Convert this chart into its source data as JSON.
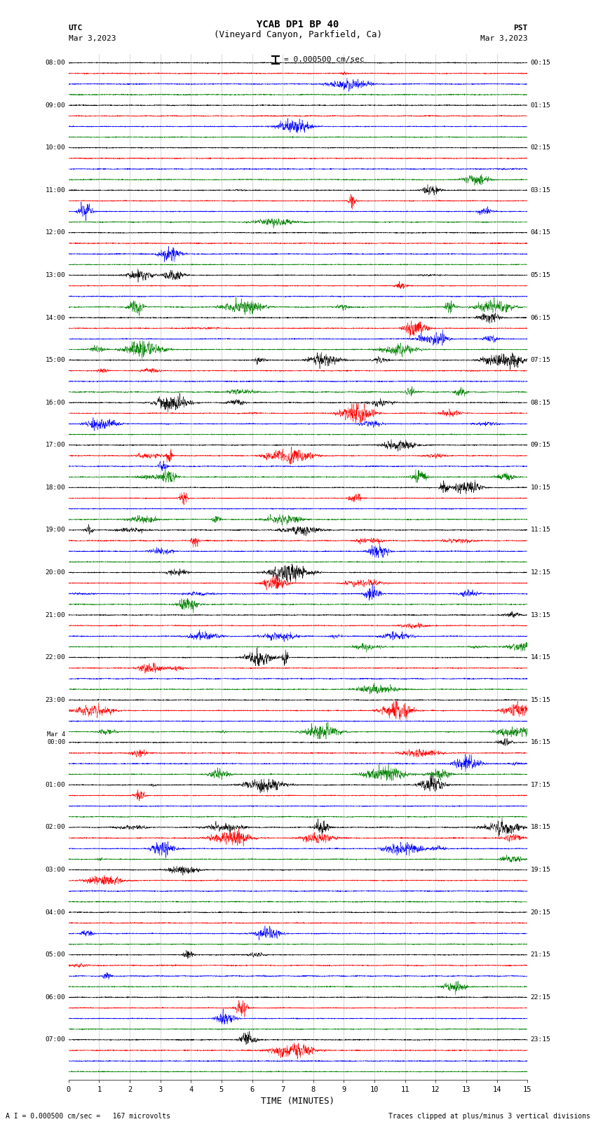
{
  "title_line1": "YCAB DP1 BP 40",
  "title_line2": "(Vineyard Canyon, Parkfield, Ca)",
  "scale_text": "= 0.000500 cm/sec",
  "left_header": "UTC",
  "left_date": "Mar 3,2023",
  "right_header": "PST",
  "right_date": "Mar 3,2023",
  "xlabel": "TIME (MINUTES)",
  "bottom_left": "A I = 0.000500 cm/sec =   167 microvolts",
  "bottom_right": "Traces clipped at plus/minus 3 vertical divisions",
  "left_times": [
    "08:00",
    "",
    "",
    "",
    "09:00",
    "",
    "",
    "",
    "10:00",
    "",
    "",
    "",
    "11:00",
    "",
    "",
    "",
    "12:00",
    "",
    "",
    "",
    "13:00",
    "",
    "",
    "",
    "14:00",
    "",
    "",
    "",
    "15:00",
    "",
    "",
    "",
    "16:00",
    "",
    "",
    "",
    "17:00",
    "",
    "",
    "",
    "18:00",
    "",
    "",
    "",
    "19:00",
    "",
    "",
    "",
    "20:00",
    "",
    "",
    "",
    "21:00",
    "",
    "",
    "",
    "22:00",
    "",
    "",
    "",
    "23:00",
    "",
    "",
    "",
    "Mar 4\n00:00",
    "",
    "",
    "",
    "01:00",
    "",
    "",
    "",
    "02:00",
    "",
    "",
    "",
    "03:00",
    "",
    "",
    "",
    "04:00",
    "",
    "",
    "",
    "05:00",
    "",
    "",
    "",
    "06:00",
    "",
    "",
    "",
    "07:00",
    "",
    "",
    ""
  ],
  "right_times": [
    "00:15",
    "",
    "",
    "",
    "01:15",
    "",
    "",
    "",
    "02:15",
    "",
    "",
    "",
    "03:15",
    "",
    "",
    "",
    "04:15",
    "",
    "",
    "",
    "05:15",
    "",
    "",
    "",
    "06:15",
    "",
    "",
    "",
    "07:15",
    "",
    "",
    "",
    "08:15",
    "",
    "",
    "",
    "09:15",
    "",
    "",
    "",
    "10:15",
    "",
    "",
    "",
    "11:15",
    "",
    "",
    "",
    "12:15",
    "",
    "",
    "",
    "13:15",
    "",
    "",
    "",
    "14:15",
    "",
    "",
    "",
    "15:15",
    "",
    "",
    "",
    "16:15",
    "",
    "",
    "",
    "17:15",
    "",
    "",
    "",
    "18:15",
    "",
    "",
    "",
    "19:15",
    "",
    "",
    "",
    "20:15",
    "",
    "",
    "",
    "21:15",
    "",
    "",
    "",
    "22:15",
    "",
    "",
    "",
    "23:15",
    "",
    "",
    ""
  ],
  "colors": [
    "black",
    "red",
    "blue",
    "green"
  ],
  "n_rows": 96,
  "n_points": 3000,
  "fig_width": 8.5,
  "fig_height": 16.13,
  "bg_color": "white",
  "vgrid_color": "#aaaaaa",
  "vgrid_lw": 0.4
}
